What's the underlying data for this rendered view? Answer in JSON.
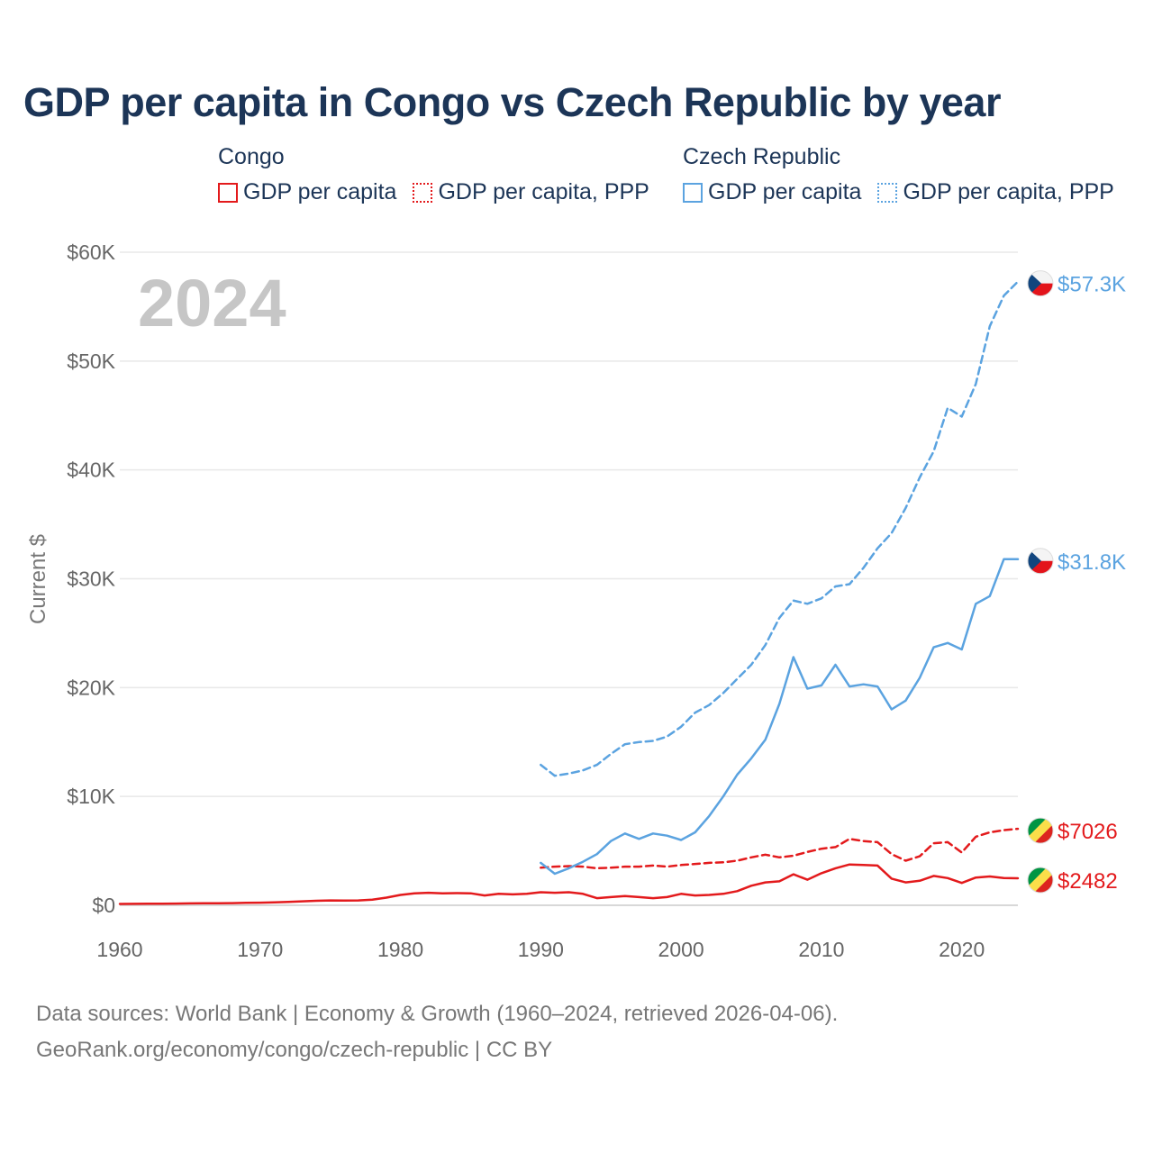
{
  "title": "GDP per capita in Congo vs Czech Republic by year",
  "legend": {
    "groups": [
      {
        "name": "Congo",
        "color": "#e31a1c",
        "items": [
          {
            "label": "GDP per capita",
            "style": "solid"
          },
          {
            "label": "GDP per capita, PPP",
            "style": "dotted"
          }
        ]
      },
      {
        "name": "Czech Republic",
        "color": "#5ba3e0",
        "items": [
          {
            "label": "GDP per capita",
            "style": "solid"
          },
          {
            "label": "GDP per capita, PPP",
            "style": "dotted"
          }
        ]
      }
    ]
  },
  "year_watermark": "2024",
  "footer": {
    "line1": "Data sources: World Bank | Economy & Growth (1960–2024, retrieved 2026-04-06).",
    "line2": "GeoRank.org/economy/congo/czech-republic | CC BY"
  },
  "chart_data": {
    "type": "line",
    "title": "GDP per capita in Congo vs Czech Republic by year",
    "xlabel": "",
    "ylabel": "Current $",
    "xlim": [
      1960,
      2024
    ],
    "ylim": [
      0,
      60000
    ],
    "x_ticks": [
      1960,
      1970,
      1980,
      1990,
      2000,
      2010,
      2020
    ],
    "y_ticks": [
      0,
      10000,
      20000,
      30000,
      40000,
      50000,
      60000
    ],
    "y_tick_labels": [
      "$0",
      "$10K",
      "$20K",
      "$30K",
      "$40K",
      "$50K",
      "$60K"
    ],
    "grid": true,
    "series": [
      {
        "name": "Congo — GDP per capita",
        "country": "Congo",
        "color": "#e31a1c",
        "dash": "solid",
        "end_label": "$2482",
        "x": [
          1960,
          1961,
          1962,
          1963,
          1964,
          1965,
          1966,
          1967,
          1968,
          1969,
          1970,
          1971,
          1972,
          1973,
          1974,
          1975,
          1976,
          1977,
          1978,
          1979,
          1980,
          1981,
          1982,
          1983,
          1984,
          1985,
          1986,
          1987,
          1988,
          1989,
          1990,
          1991,
          1992,
          1993,
          1994,
          1995,
          1996,
          1997,
          1998,
          1999,
          2000,
          2001,
          2002,
          2003,
          2004,
          2005,
          2006,
          2007,
          2008,
          2009,
          2010,
          2011,
          2012,
          2013,
          2014,
          2015,
          2016,
          2017,
          2018,
          2019,
          2020,
          2021,
          2022,
          2023,
          2024
        ],
        "values": [
          120,
          130,
          140,
          150,
          160,
          170,
          180,
          190,
          200,
          220,
          240,
          270,
          310,
          360,
          410,
          450,
          440,
          450,
          520,
          700,
          950,
          1100,
          1150,
          1100,
          1120,
          1100,
          900,
          1050,
          1000,
          1050,
          1200,
          1150,
          1200,
          1050,
          650,
          750,
          850,
          750,
          650,
          750,
          1050,
          900,
          950,
          1050,
          1300,
          1800,
          2100,
          2200,
          2850,
          2350,
          2950,
          3400,
          3750,
          3700,
          3650,
          2450,
          2100,
          2250,
          2700,
          2500,
          2050,
          2550,
          2650,
          2500,
          2482
        ]
      },
      {
        "name": "Congo — GDP per capita, PPP",
        "country": "Congo",
        "color": "#e31a1c",
        "dash": "dashed",
        "end_label": "$7026",
        "x": [
          1990,
          1991,
          1992,
          1993,
          1994,
          1995,
          1996,
          1997,
          1998,
          1999,
          2000,
          2001,
          2002,
          2003,
          2004,
          2005,
          2006,
          2007,
          2008,
          2009,
          2010,
          2011,
          2012,
          2013,
          2014,
          2015,
          2016,
          2017,
          2018,
          2019,
          2020,
          2021,
          2022,
          2023,
          2024
        ],
        "values": [
          3450,
          3550,
          3600,
          3550,
          3400,
          3450,
          3550,
          3550,
          3650,
          3550,
          3700,
          3800,
          3900,
          3950,
          4100,
          4400,
          4650,
          4400,
          4550,
          4900,
          5200,
          5350,
          6100,
          5900,
          5800,
          4700,
          4100,
          4500,
          5700,
          5800,
          4850,
          6300,
          6700,
          6900,
          7026
        ]
      },
      {
        "name": "Czech Republic — GDP per capita",
        "country": "Czech Republic",
        "color": "#5ba3e0",
        "dash": "solid",
        "end_label": "$31.8K",
        "x": [
          1990,
          1991,
          1992,
          1993,
          1994,
          1995,
          1996,
          1997,
          1998,
          1999,
          2000,
          2001,
          2002,
          2003,
          2004,
          2005,
          2006,
          2007,
          2008,
          2009,
          2010,
          2011,
          2012,
          2013,
          2014,
          2015,
          2016,
          2017,
          2018,
          2019,
          2020,
          2021,
          2022,
          2023,
          2024
        ],
        "values": [
          3900,
          2900,
          3400,
          4000,
          4700,
          5900,
          6600,
          6100,
          6600,
          6400,
          6000,
          6700,
          8200,
          10000,
          12000,
          13500,
          15200,
          18500,
          22800,
          19900,
          20200,
          22100,
          20100,
          20300,
          20100,
          18000,
          18800,
          20900,
          23700,
          24100,
          23500,
          27700,
          28400,
          31800,
          31800
        ]
      },
      {
        "name": "Czech Republic — GDP per capita, PPP",
        "country": "Czech Republic",
        "color": "#5ba3e0",
        "dash": "dashed",
        "end_label": "$57.3K",
        "x": [
          1990,
          1991,
          1992,
          1993,
          1994,
          1995,
          1996,
          1997,
          1998,
          1999,
          2000,
          2001,
          2002,
          2003,
          2004,
          2005,
          2006,
          2007,
          2008,
          2009,
          2010,
          2011,
          2012,
          2013,
          2014,
          2015,
          2016,
          2017,
          2018,
          2019,
          2020,
          2021,
          2022,
          2023,
          2024
        ],
        "values": [
          12900,
          11900,
          12100,
          12400,
          12900,
          13900,
          14800,
          15000,
          15100,
          15500,
          16400,
          17700,
          18400,
          19500,
          20800,
          22100,
          23900,
          26400,
          28000,
          27700,
          28200,
          29300,
          29500,
          31000,
          32800,
          34200,
          36500,
          39300,
          41700,
          45700,
          44900,
          47900,
          53200,
          56000,
          57300
        ]
      }
    ]
  }
}
